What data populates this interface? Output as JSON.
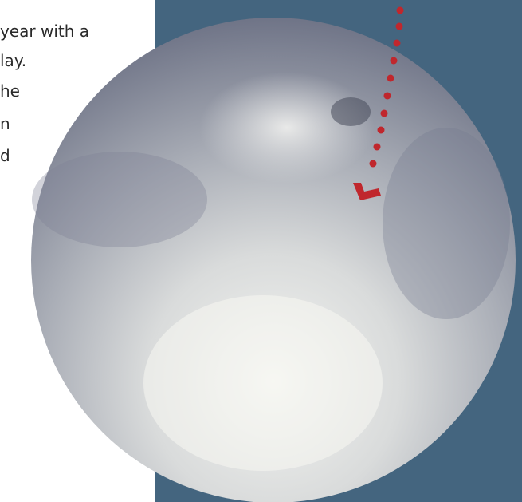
{
  "article": {
    "lines": [
      "year with a",
      "lay.",
      "he",
      "n",
      "d"
    ]
  }
}
